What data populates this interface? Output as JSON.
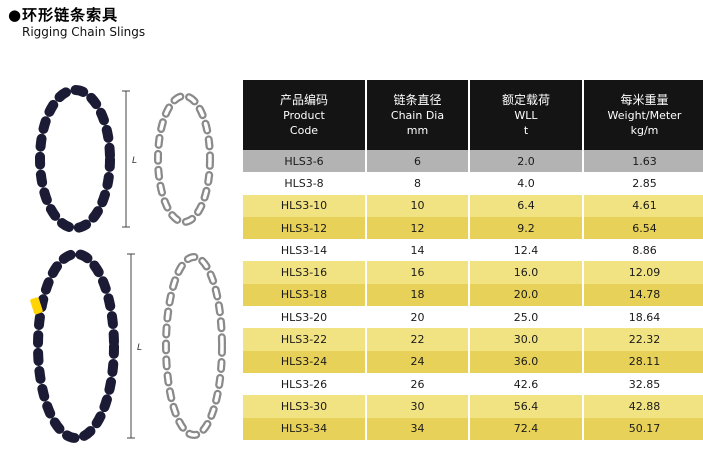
{
  "page": {
    "title_cn": "●环形链条索具",
    "title_en": "Rigging Chain Slings"
  },
  "illustrations": [
    {
      "name": "rigging-chain-sling-small",
      "dimension_label": "L"
    },
    {
      "name": "rigging-chain-sling-large",
      "dimension_label": "L"
    }
  ],
  "table": {
    "columns": [
      {
        "cn": "产品编码",
        "en": "Product",
        "en2": "Code"
      },
      {
        "cn": "链条直径",
        "en": "Chain Dia",
        "en2": "mm"
      },
      {
        "cn": "额定载荷",
        "en": "WLL",
        "en2": "t"
      },
      {
        "cn": "每米重量",
        "en": "Weight/Meter",
        "en2": "kg/m"
      }
    ],
    "rows": [
      [
        "HLS3-6",
        "6",
        "2.0",
        "1.63"
      ],
      [
        "HLS3-8",
        "8",
        "4.0",
        "2.85"
      ],
      [
        "HLS3-10",
        "10",
        "6.4",
        "4.61"
      ],
      [
        "HLS3-12",
        "12",
        "9.2",
        "6.54"
      ],
      [
        "HLS3-14",
        "14",
        "12.4",
        "8.86"
      ],
      [
        "HLS3-16",
        "16",
        "16.0",
        "12.09"
      ],
      [
        "HLS3-18",
        "18",
        "20.0",
        "14.78"
      ],
      [
        "HLS3-20",
        "20",
        "25.0",
        "18.64"
      ],
      [
        "HLS3-22",
        "22",
        "30.0",
        "22.32"
      ],
      [
        "HLS3-24",
        "24",
        "36.0",
        "28.11"
      ],
      [
        "HLS3-26",
        "26",
        "42.6",
        "32.85"
      ],
      [
        "HLS3-30",
        "30",
        "56.4",
        "42.88"
      ],
      [
        "HLS3-34",
        "34",
        "72.4",
        "50.17"
      ]
    ],
    "colors": {
      "header_bg": "#141414",
      "row_gray": "#b3b3b3",
      "row_white": "#ffffff",
      "row_yellow_light": "#f2e382",
      "row_yellow_dark": "#e8d158",
      "chain_dark": "#1b1b35",
      "chain_light": "#8a8a8a",
      "tag_yellow": "#ffd400"
    }
  }
}
